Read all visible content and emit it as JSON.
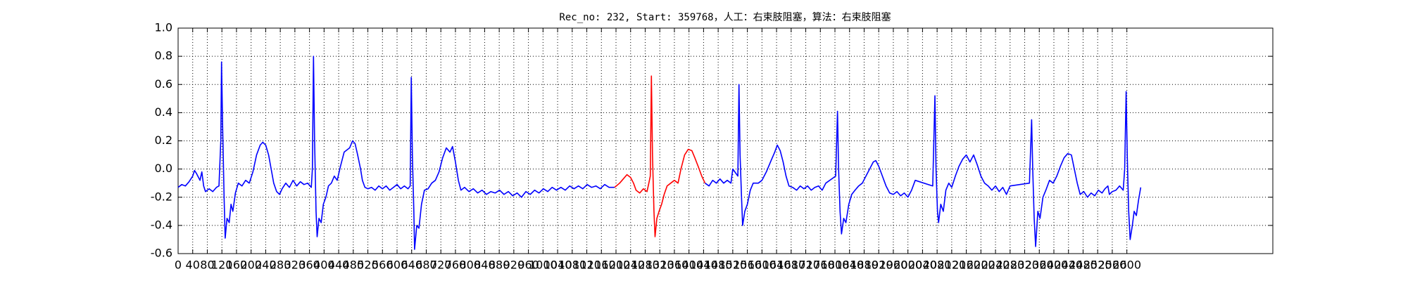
{
  "chart_data": {
    "type": "line",
    "title": "Rec_no: 232, Start: 359768，人工：右束肢阻塞，算法：右束肢阻塞",
    "xlim": [
      0,
      3000
    ],
    "xticks": [
      0,
      40,
      80,
      120,
      160,
      200,
      240,
      280,
      320,
      360,
      400,
      440,
      480,
      520,
      560,
      600,
      640,
      680,
      720,
      760,
      800,
      840,
      880,
      920,
      960,
      1000,
      1040,
      1080,
      1120,
      1160,
      1200,
      1240,
      1280,
      1320,
      1360,
      1400,
      1440,
      1480,
      1520,
      1560,
      1600,
      1640,
      1680,
      1720,
      1760,
      1800,
      1840,
      1880,
      1920,
      1960,
      2000,
      2040,
      2080,
      2120,
      2160,
      2200,
      2240,
      2280,
      2320,
      2360,
      2400,
      2440,
      2480,
      2520,
      2560,
      2600
    ],
    "ylim": [
      -0.6,
      1.0
    ],
    "yticks": [
      -0.6,
      -0.4,
      -0.2,
      {
        "value": 0,
        "label": "0.0"
      },
      0.2,
      0.4,
      0.6,
      0.8,
      {
        "value": 1,
        "label": "1.0"
      }
    ],
    "grid": true,
    "series": [
      {
        "color": "#0000ff",
        "x": [
          0,
          10,
          20,
          30,
          40,
          45,
          50,
          60,
          65,
          70,
          75,
          85,
          95,
          105,
          112,
          117,
          119,
          122,
          126,
          129,
          134,
          140,
          145,
          150,
          157,
          165,
          175,
          185,
          195,
          205,
          215,
          225,
          232,
          240,
          248,
          255,
          262,
          270,
          278,
          285,
          295,
          305,
          315,
          325,
          335,
          345,
          355,
          365,
          368,
          371,
          374,
          378,
          381,
          386,
          392,
          398,
          405,
          412,
          420,
          428,
          436,
          445,
          455,
          470,
          478,
          485,
          492,
          500,
          505,
          512,
          520,
          530,
          540,
          550,
          560,
          570,
          580,
          590,
          600,
          610,
          620,
          630,
          636,
          639,
          642,
          646,
          648,
          654,
          660,
          667,
          675,
          685,
          695,
          705,
          715,
          725,
          735,
          745,
          752,
          760,
          768,
          775,
          785,
          797,
          809,
          821,
          833,
          845,
          857,
          869,
          881,
          893,
          905,
          917,
          929,
          941,
          953,
          965,
          977,
          989,
          1001,
          1013,
          1025,
          1037,
          1049,
          1061,
          1073,
          1085,
          1097,
          1109,
          1121,
          1133,
          1145,
          1157,
          1169,
          1181,
          1196,
          1300,
          1444,
          1455,
          1465,
          1475,
          1485,
          1495,
          1505,
          1515,
          1520,
          1534,
          1537,
          1540,
          1544,
          1547,
          1553,
          1560,
          1568,
          1576,
          1590,
          1600,
          1612,
          1625,
          1635,
          1642,
          1650,
          1658,
          1666,
          1674,
          1684,
          1695,
          1705,
          1715,
          1725,
          1735,
          1745,
          1755,
          1765,
          1775,
          1802,
          1807,
          1810,
          1814,
          1818,
          1824,
          1830,
          1838,
          1846,
          1855,
          1865,
          1875,
          1885,
          1895,
          1905,
          1912,
          1920,
          1930,
          1940,
          1950,
          1960,
          1970,
          1980,
          1990,
          2000,
          2010,
          2020,
          2068,
          2074,
          2077,
          2081,
          2084,
          2090,
          2097,
          2104,
          2112,
          2120,
          2130,
          2140,
          2150,
          2160,
          2170,
          2180,
          2190,
          2200,
          2210,
          2220,
          2230,
          2240,
          2250,
          2260,
          2270,
          2280,
          2333,
          2339,
          2342,
          2346,
          2350,
          2356,
          2362,
          2370,
          2378,
          2388,
          2398,
          2408,
          2418,
          2428,
          2438,
          2448,
          2456,
          2464,
          2472,
          2482,
          2492,
          2502,
          2512,
          2522,
          2532,
          2540,
          2548,
          2552,
          2560,
          2570,
          2580,
          2590,
          2594,
          2598,
          2601,
          2605,
          2609,
          2615,
          2620,
          2626,
          2632,
          2638
        ],
        "values": [
          -0.13,
          -0.11,
          -0.12,
          -0.09,
          -0.05,
          -0.01,
          -0.03,
          -0.08,
          -0.02,
          -0.12,
          -0.16,
          -0.14,
          -0.16,
          -0.13,
          -0.12,
          0.2,
          0.76,
          0.3,
          -0.2,
          -0.49,
          -0.35,
          -0.38,
          -0.25,
          -0.3,
          -0.17,
          -0.1,
          -0.12,
          -0.08,
          -0.1,
          -0.02,
          0.1,
          0.17,
          0.19,
          0.17,
          0.1,
          0.0,
          -0.1,
          -0.16,
          -0.18,
          -0.14,
          -0.1,
          -0.13,
          -0.08,
          -0.12,
          -0.09,
          -0.11,
          -0.1,
          -0.13,
          0.0,
          0.8,
          0.2,
          -0.3,
          -0.48,
          -0.35,
          -0.38,
          -0.25,
          -0.2,
          -0.12,
          -0.1,
          -0.05,
          -0.08,
          0.02,
          0.12,
          0.15,
          0.2,
          0.18,
          0.1,
          0.0,
          -0.08,
          -0.13,
          -0.14,
          -0.13,
          -0.15,
          -0.12,
          -0.14,
          -0.12,
          -0.15,
          -0.13,
          -0.11,
          -0.14,
          -0.12,
          -0.14,
          -0.12,
          0.65,
          0.1,
          -0.3,
          -0.57,
          -0.4,
          -0.42,
          -0.25,
          -0.15,
          -0.14,
          -0.1,
          -0.08,
          -0.02,
          0.08,
          0.15,
          0.12,
          0.16,
          0.05,
          -0.08,
          -0.15,
          -0.13,
          -0.16,
          -0.14,
          -0.17,
          -0.15,
          -0.18,
          -0.16,
          -0.17,
          -0.15,
          -0.18,
          -0.16,
          -0.19,
          -0.17,
          -0.2,
          -0.16,
          -0.18,
          -0.15,
          -0.17,
          -0.14,
          -0.16,
          -0.13,
          -0.15,
          -0.13,
          -0.15,
          -0.12,
          -0.14,
          -0.12,
          -0.14,
          -0.11,
          -0.13,
          -0.12,
          -0.14,
          -0.11,
          -0.13,
          -0.13,
          null,
          -0.1,
          -0.12,
          -0.08,
          -0.1,
          -0.07,
          -0.1,
          -0.08,
          -0.1,
          0.0,
          -0.05,
          0.6,
          0.1,
          -0.2,
          -0.4,
          -0.3,
          -0.25,
          -0.15,
          -0.1,
          -0.1,
          -0.08,
          -0.02,
          0.06,
          0.12,
          0.17,
          0.13,
          0.05,
          -0.05,
          -0.12,
          -0.13,
          -0.15,
          -0.12,
          -0.14,
          -0.12,
          -0.15,
          -0.13,
          -0.12,
          -0.15,
          -0.1,
          -0.05,
          0.41,
          0.0,
          -0.3,
          -0.46,
          -0.35,
          -0.38,
          -0.25,
          -0.18,
          -0.15,
          -0.12,
          -0.1,
          -0.05,
          0.0,
          0.05,
          0.06,
          0.02,
          -0.05,
          -0.12,
          -0.17,
          -0.18,
          -0.16,
          -0.19,
          -0.17,
          -0.2,
          -0.15,
          -0.08,
          -0.12,
          0.52,
          0.0,
          -0.3,
          -0.38,
          -0.25,
          -0.3,
          -0.15,
          -0.1,
          -0.13,
          -0.05,
          0.02,
          0.07,
          0.1,
          0.05,
          0.1,
          0.03,
          -0.05,
          -0.1,
          -0.12,
          -0.15,
          -0.12,
          -0.16,
          -0.13,
          -0.18,
          -0.12,
          -0.1,
          0.35,
          0.0,
          -0.35,
          -0.55,
          -0.3,
          -0.35,
          -0.2,
          -0.15,
          -0.08,
          -0.1,
          -0.05,
          0.02,
          0.08,
          0.11,
          0.1,
          0.0,
          -0.1,
          -0.18,
          -0.16,
          -0.2,
          -0.17,
          -0.19,
          -0.15,
          -0.17,
          -0.14,
          -0.12,
          -0.18,
          -0.16,
          -0.15,
          -0.12,
          -0.15,
          0.0,
          0.55,
          0.1,
          -0.3,
          -0.5,
          -0.4,
          -0.3,
          -0.33,
          -0.22,
          -0.13
        ]
      },
      {
        "color": "#ff0000",
        "x": [
          1196,
          1210,
          1220,
          1230,
          1240,
          1248,
          1255,
          1265,
          1275,
          1285,
          1290,
          1294,
          1297,
          1300,
          1304,
          1307,
          1312,
          1318,
          1325,
          1332,
          1340,
          1350,
          1360,
          1370,
          1378,
          1388,
          1398,
          1408,
          1416,
          1425,
          1435,
          1444
        ],
        "values": [
          -0.13,
          -0.1,
          -0.07,
          -0.04,
          -0.06,
          -0.1,
          -0.15,
          -0.17,
          -0.14,
          -0.16,
          -0.1,
          -0.05,
          0.66,
          0.1,
          -0.3,
          -0.48,
          -0.35,
          -0.3,
          -0.25,
          -0.18,
          -0.12,
          -0.1,
          -0.08,
          -0.1,
          0.0,
          0.1,
          0.14,
          0.13,
          0.08,
          0.02,
          -0.05,
          -0.1
        ]
      }
    ]
  }
}
